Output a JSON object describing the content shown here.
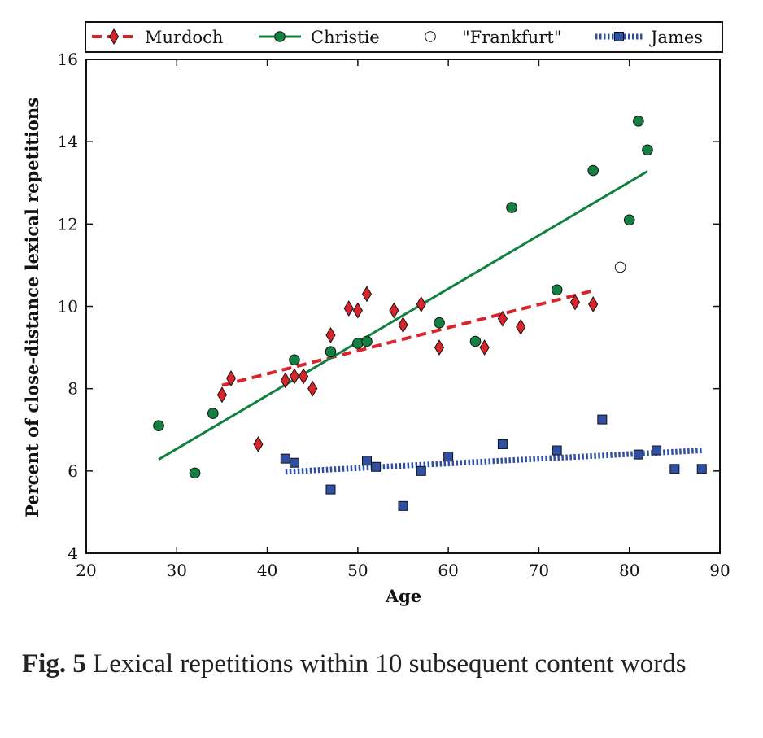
{
  "chart_data": {
    "type": "scatter",
    "xlabel": "Age",
    "ylabel": "Percent of close-distance lexical repetitions",
    "xlim": [
      20,
      90
    ],
    "ylim": [
      4,
      16
    ],
    "xticks": [
      20,
      30,
      40,
      50,
      60,
      70,
      80,
      90
    ],
    "yticks": [
      4,
      6,
      8,
      10,
      12,
      14,
      16
    ],
    "grid": false,
    "legend_position": "top",
    "series": [
      {
        "name": "Murdoch",
        "color": "#d8242b",
        "marker": "diamond",
        "line_style": "dashed",
        "points": [
          [
            35,
            7.85
          ],
          [
            36,
            8.25
          ],
          [
            39,
            6.65
          ],
          [
            42,
            8.2
          ],
          [
            43,
            8.3
          ],
          [
            44,
            8.3
          ],
          [
            45,
            8.0
          ],
          [
            47,
            9.3
          ],
          [
            49,
            9.95
          ],
          [
            50,
            9.9
          ],
          [
            51,
            10.3
          ],
          [
            54,
            9.9
          ],
          [
            55,
            9.55
          ],
          [
            57,
            10.05
          ],
          [
            59,
            9.0
          ],
          [
            64,
            9.0
          ],
          [
            66,
            9.7
          ],
          [
            68,
            9.5
          ],
          [
            74,
            10.1
          ],
          [
            76,
            10.05
          ]
        ],
        "trend": [
          [
            35,
            8.08
          ],
          [
            76,
            10.38
          ]
        ]
      },
      {
        "name": "Christie",
        "color": "#128040",
        "marker": "circle",
        "line_style": "solid",
        "points": [
          [
            28,
            7.1
          ],
          [
            32,
            5.95
          ],
          [
            34,
            7.4
          ],
          [
            43,
            8.7
          ],
          [
            47,
            8.9
          ],
          [
            50,
            9.1
          ],
          [
            51,
            9.15
          ],
          [
            59,
            9.6
          ],
          [
            63,
            9.15
          ],
          [
            67,
            12.4
          ],
          [
            72,
            10.4
          ],
          [
            76,
            13.3
          ],
          [
            80,
            12.1
          ],
          [
            81,
            14.5
          ],
          [
            82,
            13.8
          ]
        ],
        "trend": [
          [
            28,
            6.28
          ],
          [
            82,
            13.28
          ]
        ]
      },
      {
        "name": "\"Frankfurt\"",
        "color": "#ffffff",
        "marker": "open-circle",
        "line_style": "none",
        "points": [
          [
            79,
            10.95
          ]
        ]
      },
      {
        "name": "James",
        "color": "#2e4fa3",
        "marker": "square",
        "line_style": "dotted",
        "points": [
          [
            42,
            6.3
          ],
          [
            43,
            6.2
          ],
          [
            47,
            5.55
          ],
          [
            51,
            6.25
          ],
          [
            52,
            6.1
          ],
          [
            55,
            5.15
          ],
          [
            57,
            6.0
          ],
          [
            60,
            6.35
          ],
          [
            66,
            6.65
          ],
          [
            72,
            6.5
          ],
          [
            77,
            7.25
          ],
          [
            81,
            6.4
          ],
          [
            83,
            6.5
          ],
          [
            85,
            6.05
          ],
          [
            88,
            6.05
          ]
        ],
        "trend": [
          [
            42,
            5.98
          ],
          [
            88,
            6.5
          ]
        ]
      }
    ]
  },
  "caption": {
    "label": "Fig. 5",
    "text": "Lexical repetitions within 10 subsequent content words"
  }
}
